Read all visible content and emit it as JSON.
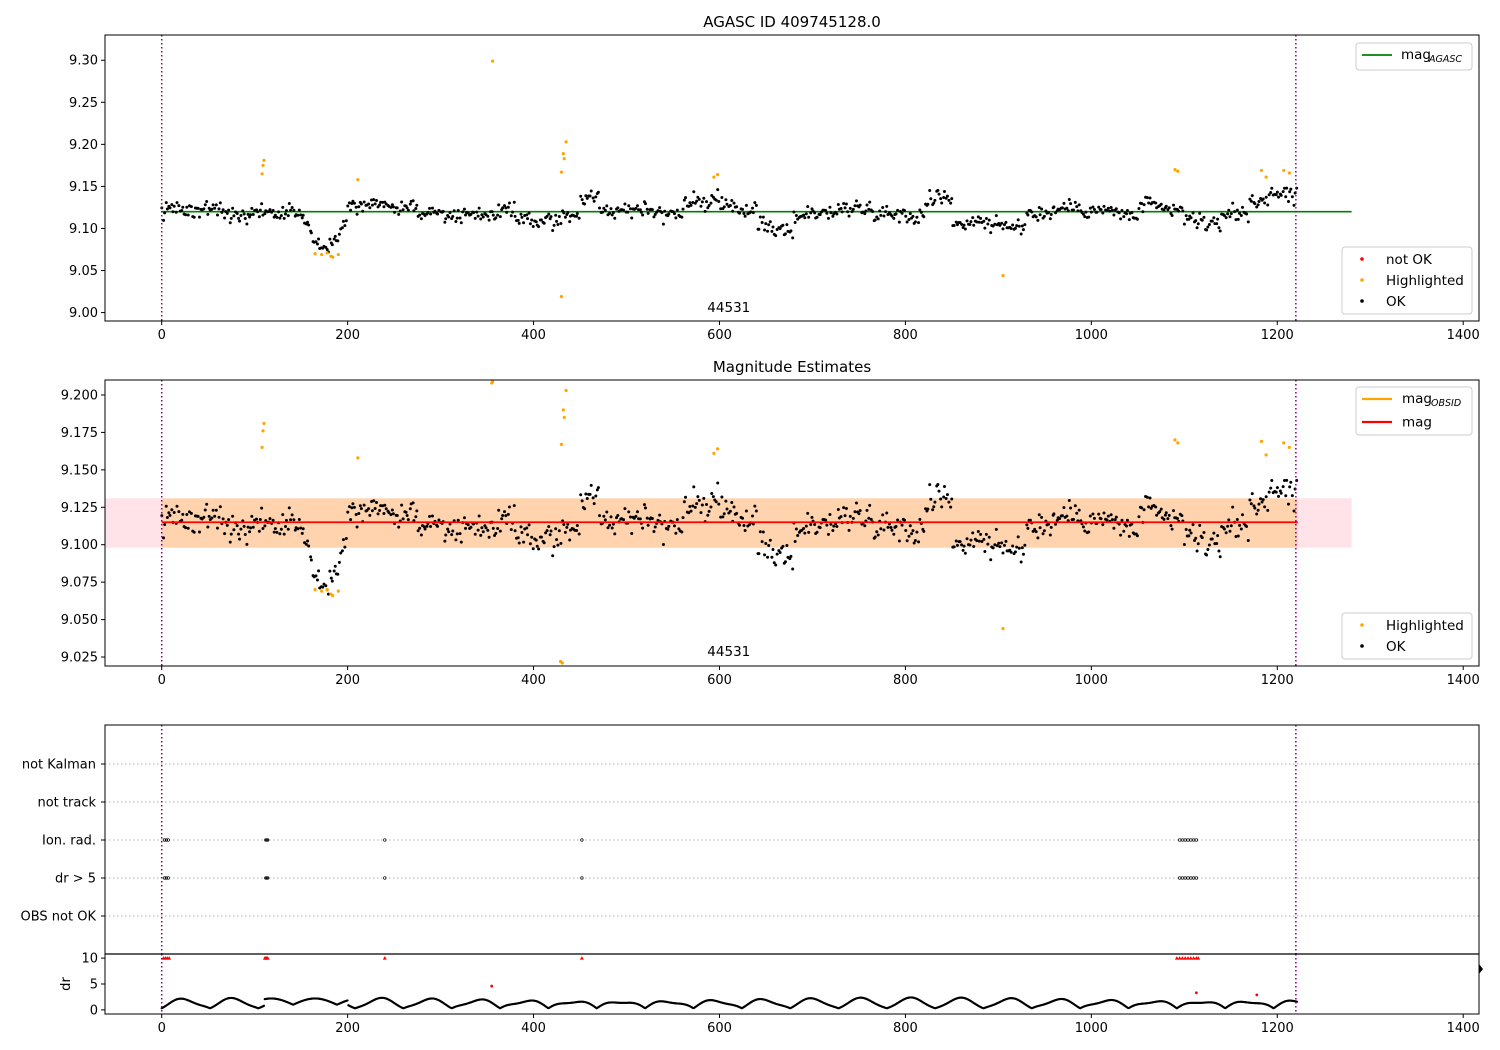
{
  "chart_data": [
    {
      "id": "top",
      "type": "scatter",
      "title": "AGASC ID 409745128.0",
      "xlim": [
        -61,
        1417
      ],
      "ylim": [
        8.99,
        9.33
      ],
      "yticks": [
        9.0,
        9.05,
        9.1,
        9.15,
        9.2,
        9.25,
        9.3
      ],
      "ytick_labels": [
        "9.00",
        "9.05",
        "9.10",
        "9.15",
        "9.20",
        "9.25",
        "9.30"
      ],
      "xticks": [
        0,
        200,
        400,
        600,
        800,
        1000,
        1200,
        1400
      ],
      "xtick_labels": [
        "0",
        "200",
        "400",
        "600",
        "800",
        "1000",
        "1200",
        "1400"
      ],
      "obs_boundaries": [
        0,
        1220
      ],
      "obsid_label": "44531",
      "obsid_label_x": 610,
      "reference_line": {
        "name": "mag_AGASC",
        "label_main": "mag",
        "label_sub": "AGASC",
        "y": 9.12,
        "x_range": [
          0,
          1280
        ],
        "color": "#008000"
      },
      "legend_lines": {
        "placement": "upper right"
      },
      "legend_points": {
        "placement": "lower right",
        "entries": [
          {
            "label": "not OK",
            "color": "#ff0000"
          },
          {
            "label": "Highlighted",
            "color": "#ffa500"
          },
          {
            "label": "OK",
            "color": "#000000"
          }
        ]
      },
      "highlighted_points": [
        [
          108,
          9.165
        ],
        [
          109,
          9.175
        ],
        [
          110,
          9.181
        ],
        [
          211,
          9.158
        ],
        [
          165,
          9.07
        ],
        [
          172,
          9.069
        ],
        [
          178,
          9.071
        ],
        [
          182,
          9.067
        ],
        [
          184,
          9.066
        ],
        [
          190,
          9.069
        ],
        [
          356,
          9.299
        ],
        [
          430,
          9.167
        ],
        [
          432,
          9.189
        ],
        [
          433,
          9.183
        ],
        [
          435,
          9.203
        ],
        [
          430,
          9.019
        ],
        [
          594,
          9.161
        ],
        [
          598,
          9.164
        ],
        [
          905,
          9.044
        ],
        [
          1090,
          9.17
        ],
        [
          1093,
          9.168
        ],
        [
          1183,
          9.169
        ],
        [
          1188,
          9.161
        ],
        [
          1207,
          9.169
        ],
        [
          1213,
          9.166
        ]
      ],
      "not_ok_points": [],
      "ok_series": {
        "x_range": [
          0,
          1222
        ],
        "count": 820,
        "baseline": 9.12,
        "color": "#000000"
      }
    },
    {
      "id": "middle",
      "type": "scatter",
      "title": "Magnitude Estimates",
      "xlim": [
        -61,
        1417
      ],
      "ylim": [
        9.019,
        9.21
      ],
      "yticks": [
        9.025,
        9.05,
        9.075,
        9.1,
        9.125,
        9.15,
        9.175,
        9.2
      ],
      "ytick_labels": [
        "9.025",
        "9.050",
        "9.075",
        "9.100",
        "9.125",
        "9.150",
        "9.175",
        "9.200"
      ],
      "xticks": [
        0,
        200,
        400,
        600,
        800,
        1000,
        1200,
        1400
      ],
      "xtick_labels": [
        "0",
        "200",
        "400",
        "600",
        "800",
        "1000",
        "1200",
        "1400"
      ],
      "obs_boundaries": [
        0,
        1220
      ],
      "obsid_label": "44531",
      "obsid_label_x": 610,
      "mag_line": {
        "name": "mag",
        "y": 9.115,
        "x_range": [
          0,
          1222
        ],
        "color": "#ff0000"
      },
      "mag_band": {
        "y_low": 9.098,
        "y_high": 9.131,
        "x_range": [
          -61,
          1280
        ],
        "color": "#ffc0cb"
      },
      "obsid_band": {
        "y_low": 9.098,
        "y_high": 9.131,
        "x_range": [
          0,
          1222
        ],
        "color": "#ffa500"
      },
      "mag_obsid_line": {
        "name": "mag_OBSID",
        "label_main": "mag",
        "label_sub": "OBSID",
        "y": 9.115,
        "color": "#ffa500"
      },
      "legend_lines": {
        "placement": "upper right"
      },
      "legend_points": {
        "placement": "lower right",
        "entries": [
          {
            "label": "Highlighted",
            "color": "#ffa500"
          },
          {
            "label": "OK",
            "color": "#000000"
          }
        ]
      },
      "highlighted_points": [
        [
          108,
          9.165
        ],
        [
          109,
          9.176
        ],
        [
          110,
          9.181
        ],
        [
          211,
          9.158
        ],
        [
          165,
          9.07
        ],
        [
          172,
          9.069
        ],
        [
          178,
          9.07
        ],
        [
          182,
          9.067
        ],
        [
          184,
          9.066
        ],
        [
          190,
          9.069
        ],
        [
          355,
          9.208
        ],
        [
          356,
          9.209
        ],
        [
          430,
          9.167
        ],
        [
          432,
          9.19
        ],
        [
          433,
          9.185
        ],
        [
          435,
          9.203
        ],
        [
          429,
          9.022
        ],
        [
          431,
          9.021
        ],
        [
          594,
          9.161
        ],
        [
          598,
          9.164
        ],
        [
          905,
          9.044
        ],
        [
          1090,
          9.17
        ],
        [
          1093,
          9.168
        ],
        [
          1183,
          9.169
        ],
        [
          1188,
          9.16
        ],
        [
          1207,
          9.168
        ],
        [
          1213,
          9.165
        ]
      ],
      "ok_series": {
        "x_range": [
          0,
          1222
        ],
        "count": 820,
        "baseline": 9.115,
        "color": "#000000"
      }
    },
    {
      "id": "flags",
      "type": "scatter",
      "xlim": [
        -61,
        1417
      ],
      "categories": [
        "OBS not OK",
        "dr > 5",
        "Ion. rad.",
        "not track",
        "not Kalman"
      ],
      "obs_boundaries": [
        0,
        1220
      ],
      "flag_points": {
        "Ion. rad.": [
          3,
          5,
          7,
          112,
          113,
          114,
          240,
          452,
          1095,
          1098,
          1101,
          1104,
          1107,
          1110,
          1113
        ],
        "dr > 5": [
          3,
          5,
          7,
          112,
          113,
          114,
          240,
          452,
          1095,
          1098,
          1101,
          1104,
          1107,
          1110,
          1113
        ]
      }
    },
    {
      "id": "dr",
      "type": "scatter",
      "ylabel": "dr",
      "xlim": [
        -61,
        1417
      ],
      "ylim": [
        -0.8,
        10.8
      ],
      "yticks": [
        0,
        5,
        10
      ],
      "ytick_labels": [
        "0",
        "5",
        "10"
      ],
      "xticks": [
        0,
        200,
        400,
        600,
        800,
        1000,
        1200,
        1400
      ],
      "xtick_labels": [
        "0",
        "200",
        "400",
        "600",
        "800",
        "1000",
        "1200",
        "1400"
      ],
      "obs_boundaries": [
        0,
        1220
      ],
      "clipped_points": [
        2,
        4,
        6,
        8,
        111,
        112,
        113,
        114,
        240,
        452,
        1092,
        1095,
        1098,
        1101,
        1104,
        1107,
        1110,
        1113,
        1115
      ],
      "outlier_points": [
        [
          355,
          4.6
        ],
        [
          1113,
          3.3
        ],
        [
          1178,
          2.9
        ]
      ],
      "series": {
        "x_range": [
          0,
          1222
        ],
        "baseline": 1.3,
        "color": "#000000"
      }
    }
  ]
}
